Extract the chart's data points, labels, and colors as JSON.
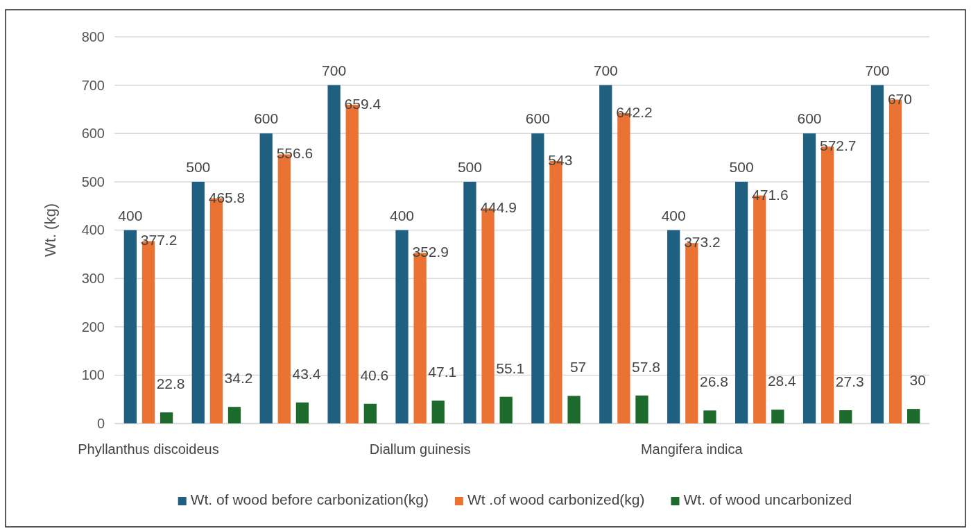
{
  "chart_data": {
    "type": "bar",
    "ylabel": "Wt. (kg)",
    "categories": [
      "Phyllanthus discoideus",
      null,
      null,
      null,
      "Diallum guinesis",
      null,
      null,
      null,
      "Mangifera indica",
      null,
      null,
      null
    ],
    "series": [
      {
        "name": "Wt. of wood before carbonization(kg)",
        "color": "#1f5f7f",
        "values": [
          400,
          500,
          600,
          700,
          400,
          500,
          600,
          700,
          400,
          500,
          600,
          700
        ]
      },
      {
        "name": "Wt .of  wood carbonized(kg)",
        "color": "#ea7334",
        "values": [
          377.2,
          465.8,
          556.6,
          659.4,
          352.9,
          444.9,
          543,
          642.2,
          373.2,
          471.6,
          572.7,
          670
        ]
      },
      {
        "name": "Wt. of wood uncarbonized",
        "color": "#1d6b2c",
        "values": [
          22.8,
          34.2,
          43.4,
          40.6,
          47.1,
          55.1,
          57,
          57.8,
          26.8,
          28.4,
          27.3,
          30
        ]
      }
    ],
    "ylim": [
      0,
      800
    ],
    "yticks": [
      0,
      100,
      200,
      300,
      400,
      500,
      600,
      700,
      800
    ],
    "grid": "y",
    "legend": "bottom",
    "data_labels": true
  }
}
